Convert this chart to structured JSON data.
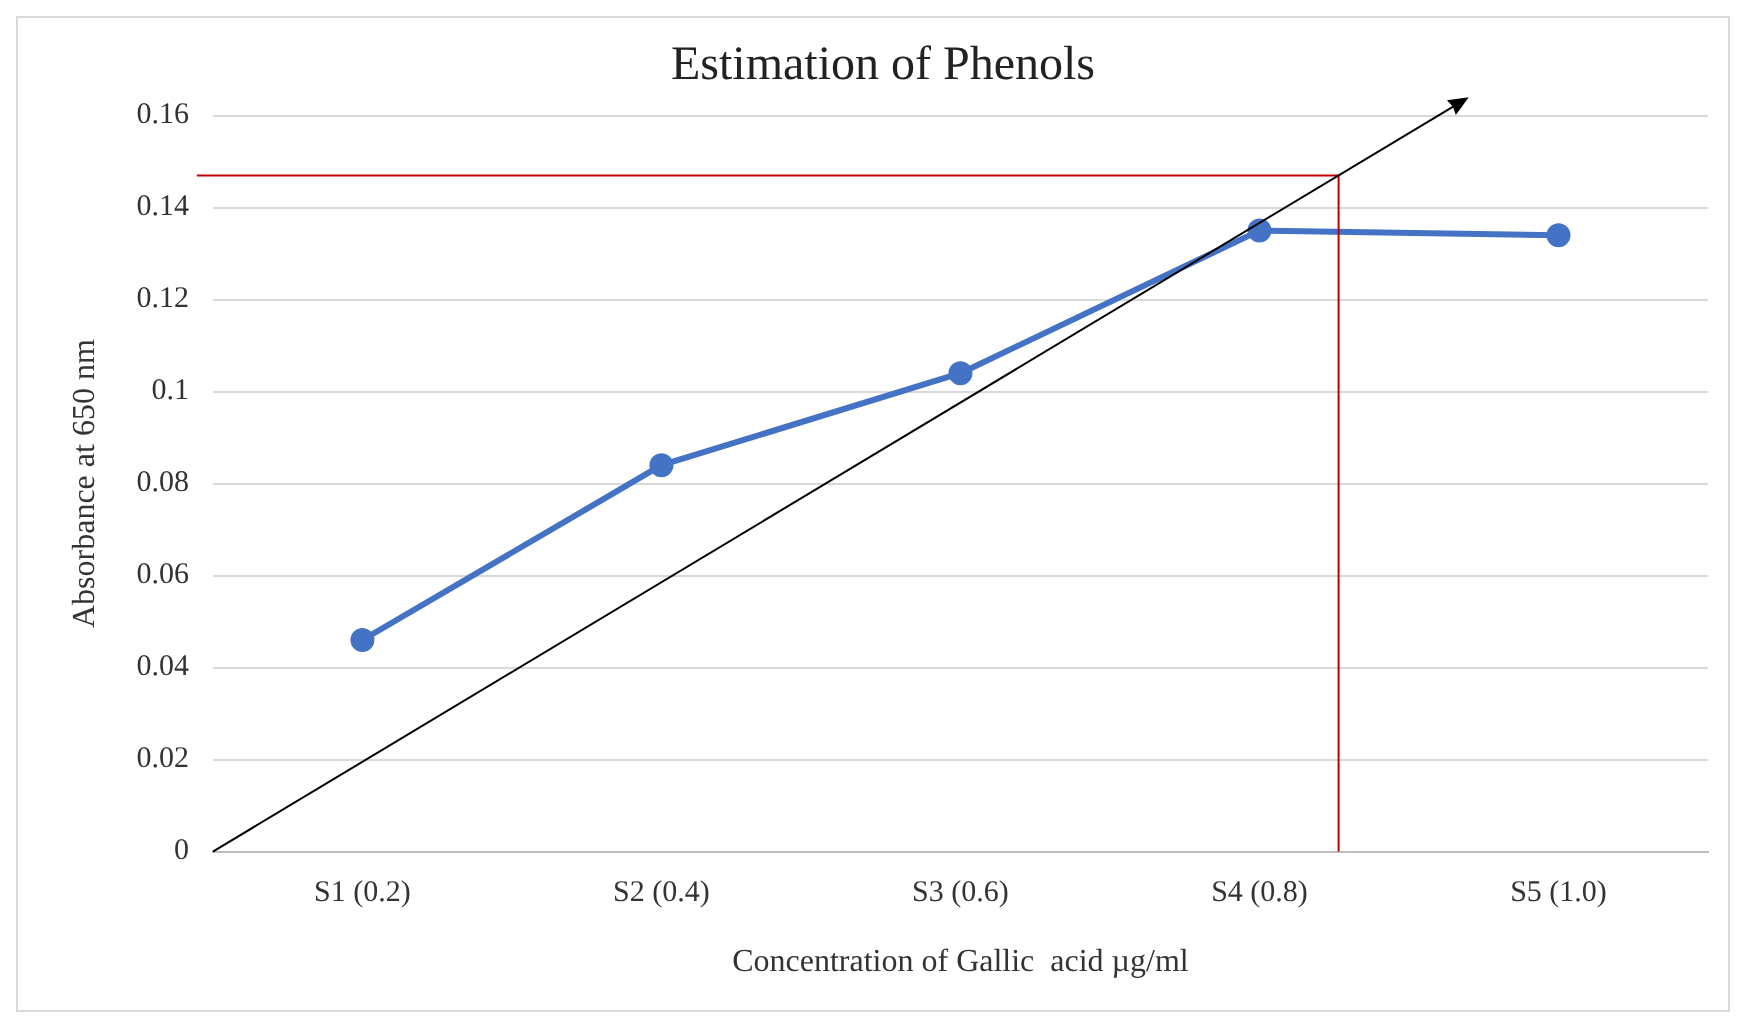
{
  "chart_data": {
    "type": "line",
    "title": "Estimation of Phenols",
    "xlabel": "Concentration of Gallic  acid µg/ml",
    "ylabel": "Absorbance at 650 nm",
    "categories": [
      "S1 (0.2)",
      "S2 (0.4)",
      "S3 (0.6)",
      "S4 (0.8)",
      "S5 (1.0)"
    ],
    "series": [
      {
        "color": "#4472c4",
        "values": [
          0.046,
          0.084,
          0.104,
          0.135,
          0.134
        ]
      }
    ],
    "ylim": [
      0,
      0.16
    ],
    "yticks": [
      0,
      0.02,
      0.04,
      0.06,
      0.08,
      {
        "value": 0.1,
        "label": "0.1"
      },
      0.12,
      0.14,
      0.16
    ],
    "ref_lines": [
      {
        "axis": "y",
        "value": 0.147,
        "color": "#c00000"
      }
    ],
    "grid": "y",
    "legend": false,
    "marker": "circle",
    "line_style": "solid"
  }
}
